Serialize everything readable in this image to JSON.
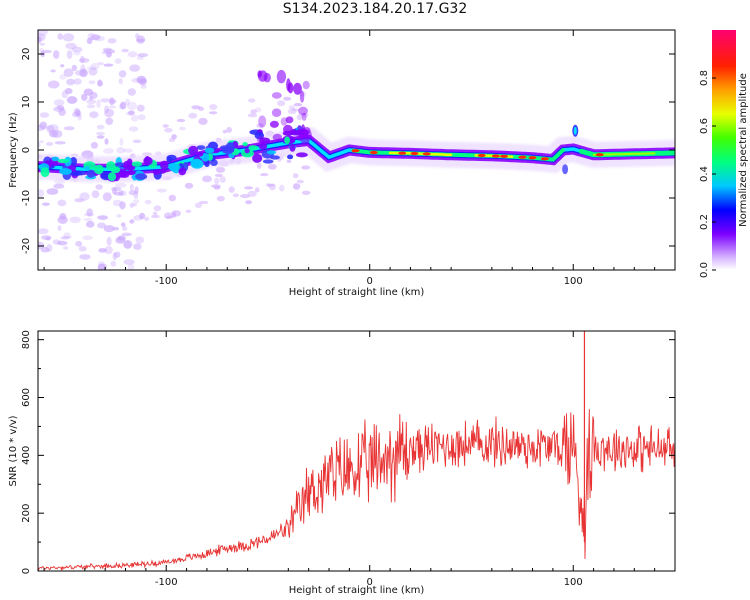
{
  "title": "S134.2023.184.20.17.G32",
  "chart_data": [
    {
      "type": "heatmap",
      "xlabel": "Height of straight line (km)",
      "ylabel": "Frequency (Hz)",
      "xlim": [
        -163,
        150
      ],
      "ylim": [
        -25,
        25
      ],
      "xticks": [
        -100,
        0,
        100
      ],
      "yticks": [
        -20,
        -10,
        0,
        10,
        20
      ],
      "colorbar": {
        "label": "Normalized spectral amplitude",
        "range": [
          0,
          1
        ],
        "ticks": [
          0.0,
          0.2,
          0.4,
          0.6,
          0.8
        ]
      },
      "ridge": {
        "description": "dominant frequency trace",
        "x": [
          -160,
          -140,
          -120,
          -100,
          -80,
          -60,
          -40,
          -30,
          -20,
          -10,
          0,
          20,
          40,
          60,
          80,
          90,
          95,
          100,
          110,
          130,
          150
        ],
        "y": [
          -3.5,
          -4,
          -4,
          -3.5,
          -1,
          0,
          1.5,
          2,
          -1.5,
          0,
          -0.5,
          -0.7,
          -1,
          -1.2,
          -1.6,
          -2,
          0,
          0.2,
          -1,
          -0.8,
          -0.6
        ]
      }
    },
    {
      "type": "line",
      "xlabel": "Height of straight line (km)",
      "ylabel": "SNR (10 * v/v)",
      "xlim": [
        -163,
        150
      ],
      "ylim": [
        0,
        830
      ],
      "xticks": [
        -100,
        0,
        100
      ],
      "yticks": [
        0,
        200,
        400,
        600,
        800
      ],
      "color": "#e83434",
      "envelope": {
        "x": [
          -163,
          -140,
          -120,
          -100,
          -90,
          -80,
          -70,
          -60,
          -50,
          -40,
          -35,
          -30,
          -20,
          -10,
          0,
          10,
          20,
          30,
          40,
          60,
          80,
          90,
          95,
          100,
          103,
          105,
          108,
          110,
          120,
          130,
          140,
          150
        ],
        "y": [
          10,
          15,
          20,
          30,
          45,
          60,
          80,
          90,
          110,
          150,
          200,
          270,
          320,
          350,
          360,
          400,
          420,
          430,
          435,
          440,
          430,
          430,
          430,
          430,
          300,
          180,
          420,
          430,
          425,
          425,
          422,
          420
        ]
      }
    }
  ]
}
